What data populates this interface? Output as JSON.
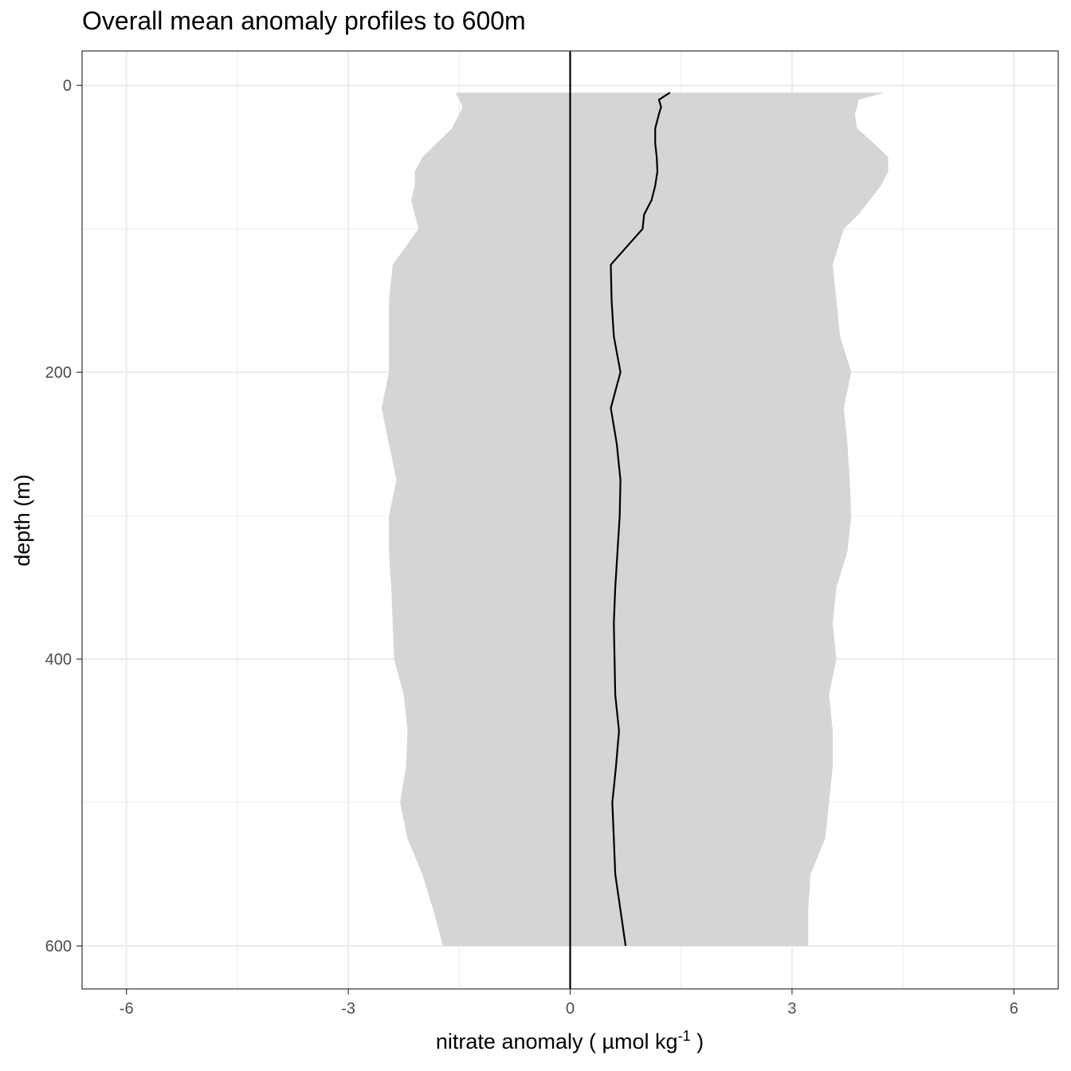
{
  "chart_data": {
    "type": "line",
    "title": "Overall mean anomaly profiles to 600m",
    "xlabel": "nitrate anomaly ( µmol kg",
    "xlabel_sup": "-1",
    "xlabel_tail": " )",
    "ylabel": "depth (m)",
    "xlim": [
      -6.6,
      6.6
    ],
    "ylim": [
      -24,
      630
    ],
    "y_reversed": true,
    "x_ticks": [
      -6,
      -3,
      0,
      3,
      6
    ],
    "x_tick_labels": [
      "-6",
      "-3",
      "0",
      "3",
      "6"
    ],
    "y_ticks": [
      0,
      200,
      400,
      600
    ],
    "y_tick_labels": [
      "0",
      "200",
      "400",
      "600"
    ],
    "grid": true,
    "reference_line_x": 0,
    "colors": {
      "ribbon": "#d5d5d5",
      "line": "#000000",
      "grid": "#ebebeb",
      "panel_border": "#333333"
    },
    "series": [
      {
        "depth": [
          5,
          10,
          15,
          20,
          30,
          40,
          50,
          60,
          70,
          80,
          90,
          100,
          125,
          150,
          175,
          200,
          225,
          250,
          275,
          300,
          325,
          350,
          375,
          400,
          425,
          450,
          475,
          500,
          525,
          550,
          575,
          600
        ],
        "mean": [
          1.35,
          1.2,
          1.23,
          1.2,
          1.15,
          1.15,
          1.17,
          1.18,
          1.15,
          1.1,
          1.0,
          0.98,
          0.55,
          0.56,
          0.59,
          0.68,
          0.55,
          0.63,
          0.68,
          0.67,
          0.64,
          0.61,
          0.59,
          0.6,
          0.61,
          0.66,
          0.62,
          0.57,
          0.59,
          0.61,
          0.68,
          0.75
        ],
        "lower": [
          -1.55,
          -1.5,
          -1.45,
          -1.5,
          -1.6,
          -1.8,
          -2.0,
          -2.1,
          -2.1,
          -2.15,
          -2.1,
          -2.05,
          -2.4,
          -2.45,
          -2.45,
          -2.45,
          -2.55,
          -2.45,
          -2.35,
          -2.45,
          -2.45,
          -2.42,
          -2.4,
          -2.38,
          -2.25,
          -2.2,
          -2.22,
          -2.3,
          -2.2,
          -2.0,
          -1.85,
          -1.72
        ]
      }
    ],
    "upper": [
      4.25,
      3.9,
      3.88,
      3.85,
      3.88,
      4.1,
      4.3,
      4.3,
      4.2,
      4.05,
      3.9,
      3.7,
      3.55,
      3.6,
      3.65,
      3.8,
      3.7,
      3.75,
      3.78,
      3.8,
      3.75,
      3.6,
      3.55,
      3.6,
      3.5,
      3.55,
      3.55,
      3.5,
      3.45,
      3.25,
      3.22,
      3.22
    ]
  }
}
